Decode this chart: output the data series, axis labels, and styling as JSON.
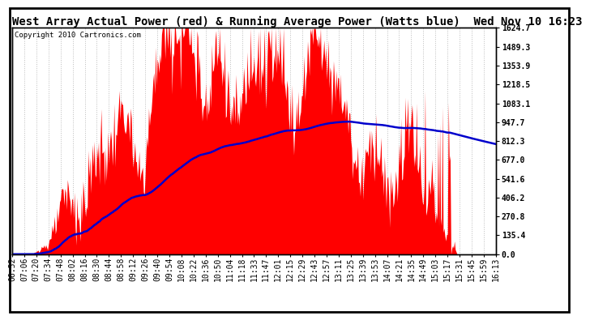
{
  "title": "West Array Actual Power (red) & Running Average Power (Watts blue)  Wed Nov 10 16:23",
  "copyright": "Copyright 2010 Cartronics.com",
  "ylabel_right_ticks": [
    0.0,
    135.4,
    270.8,
    406.2,
    541.6,
    677.0,
    812.3,
    947.7,
    1083.1,
    1218.5,
    1353.9,
    1489.3,
    1624.7
  ],
  "ymax": 1624.7,
  "ymin": 0.0,
  "bar_color": "#ff0000",
  "line_color": "#0000cc",
  "background_color": "#ffffff",
  "plot_bg_color": "#ffffff",
  "grid_color": "#bbbbbb",
  "title_fontsize": 10,
  "copyright_fontsize": 6.5,
  "tick_fontsize": 7,
  "x_labels": [
    "06:52",
    "07:06",
    "07:20",
    "07:34",
    "07:48",
    "08:02",
    "08:16",
    "08:30",
    "08:44",
    "08:58",
    "09:12",
    "09:26",
    "09:40",
    "09:54",
    "10:08",
    "10:22",
    "10:36",
    "10:50",
    "11:04",
    "11:18",
    "11:33",
    "11:47",
    "12:01",
    "12:15",
    "12:29",
    "12:43",
    "12:57",
    "13:11",
    "13:25",
    "13:39",
    "13:53",
    "14:07",
    "14:21",
    "14:35",
    "14:49",
    "15:03",
    "15:17",
    "15:31",
    "15:45",
    "15:59",
    "16:13"
  ]
}
